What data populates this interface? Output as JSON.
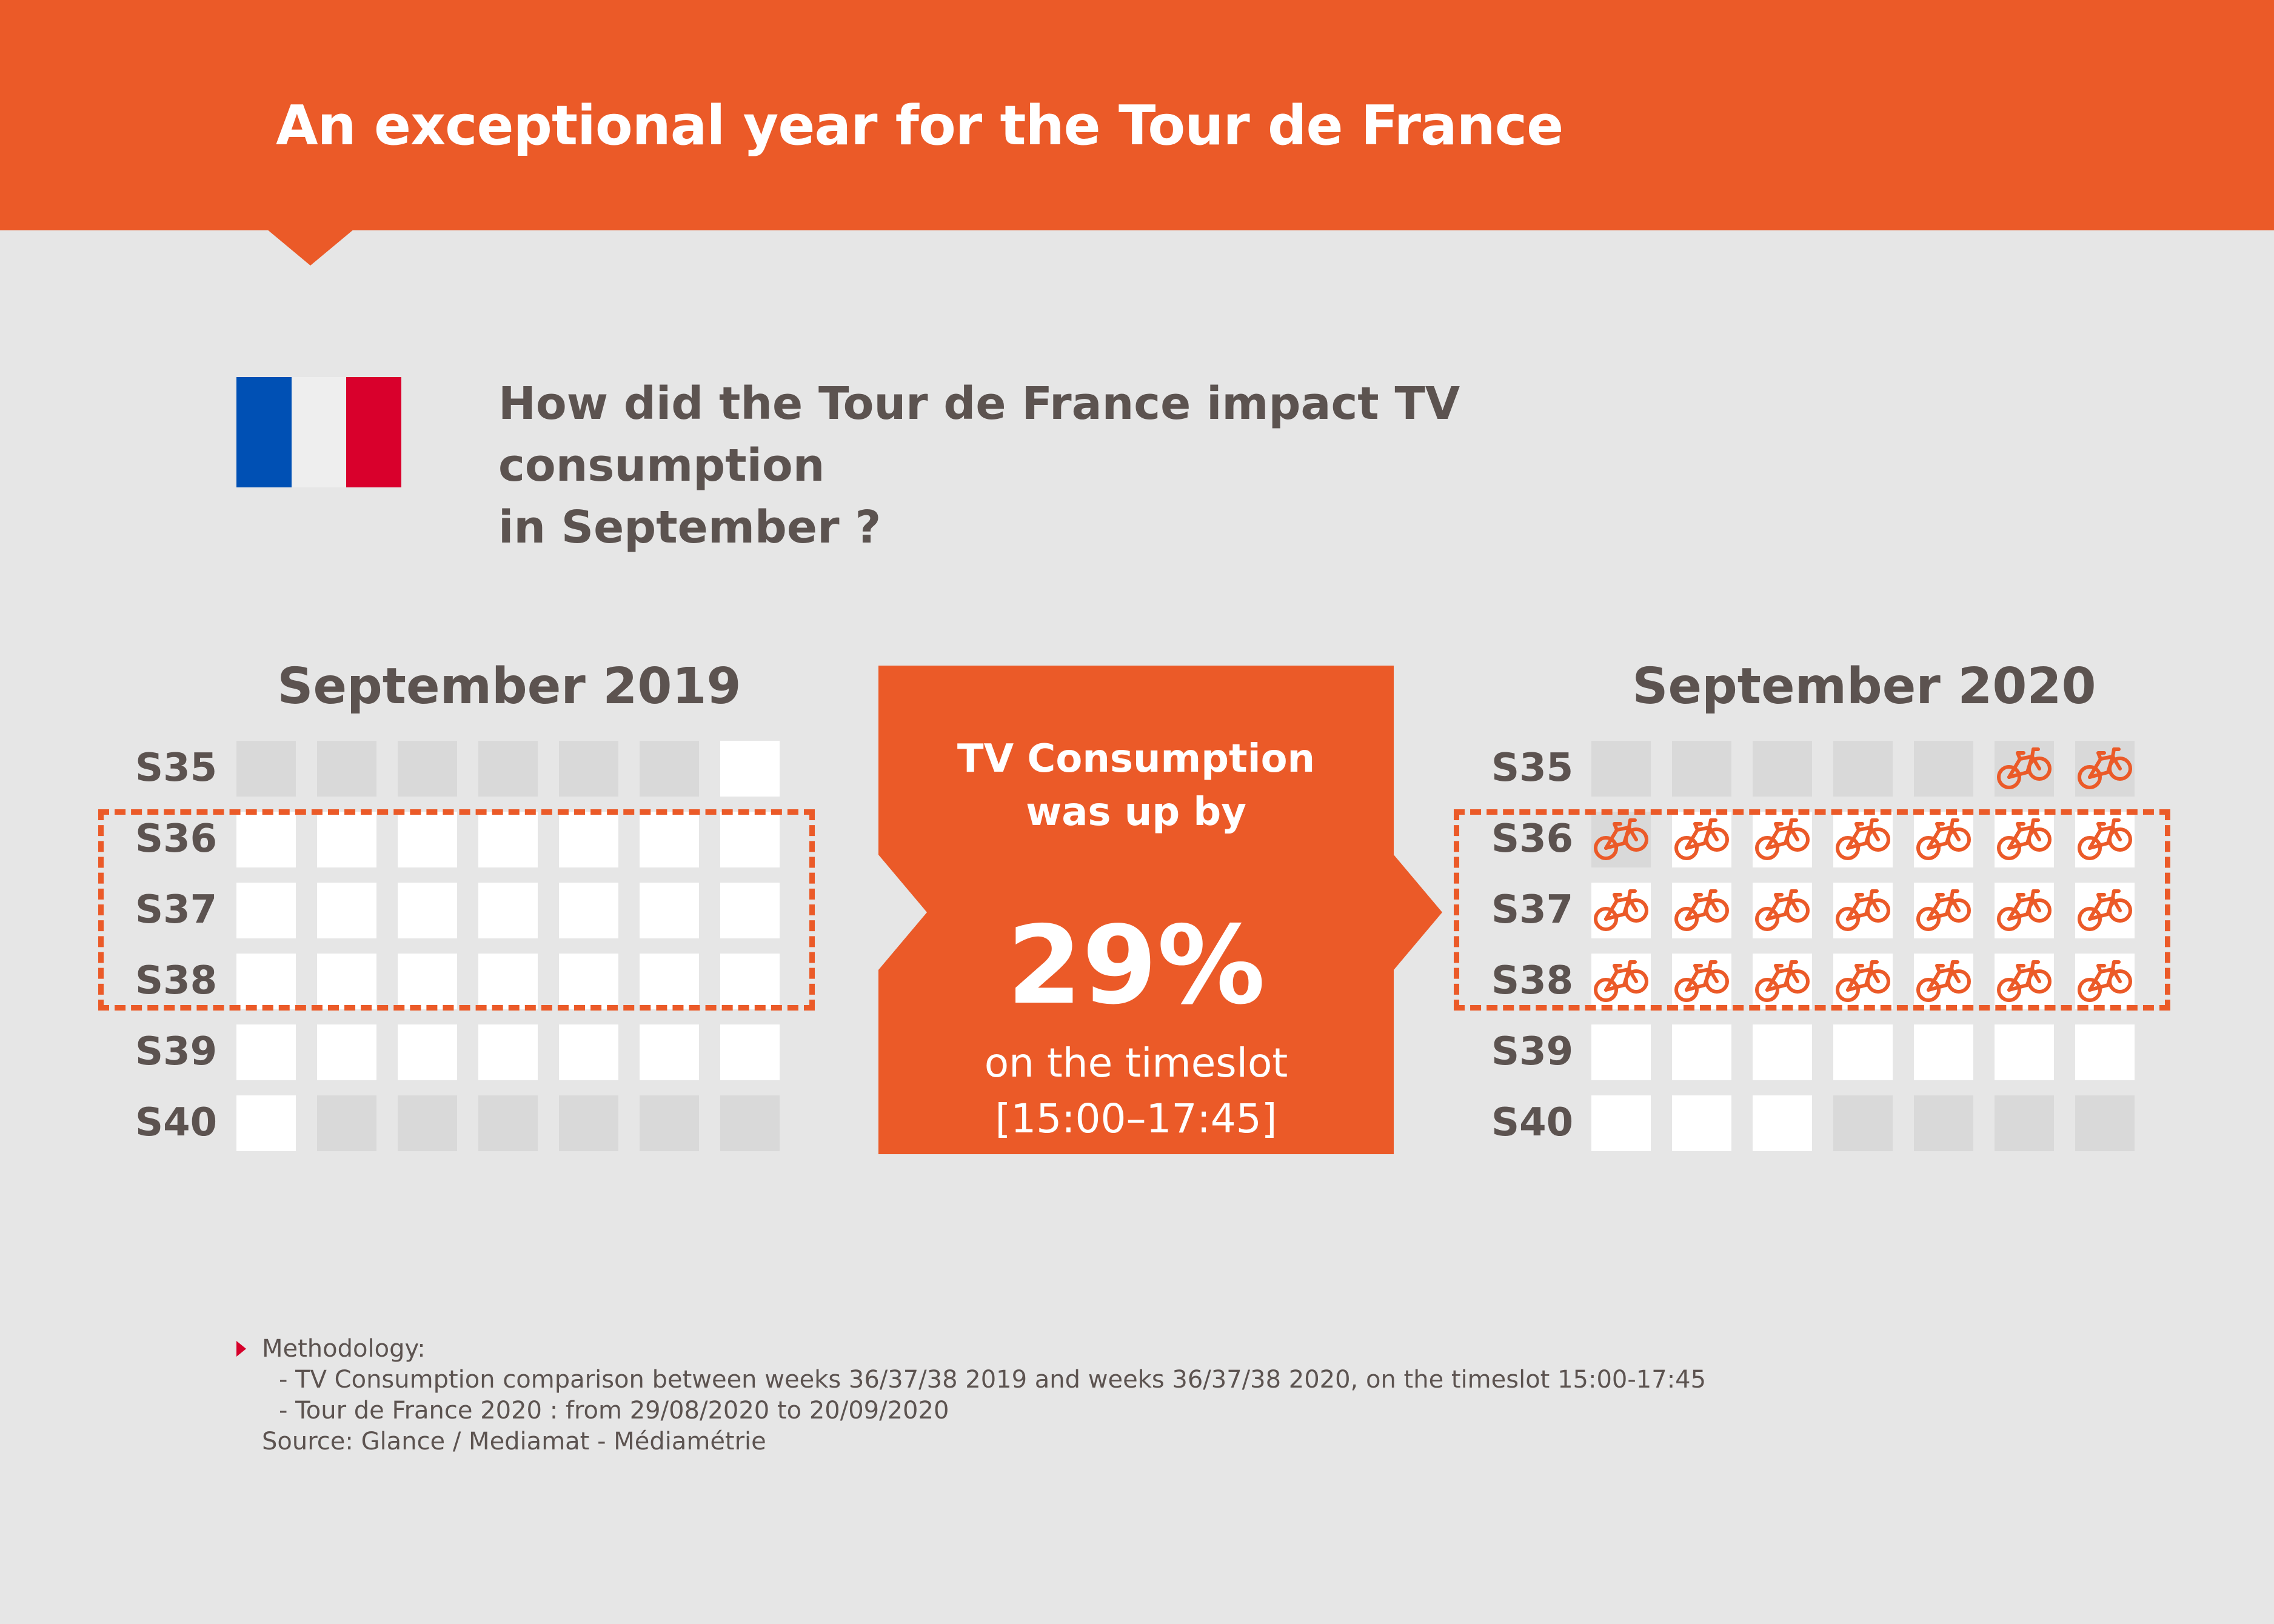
{
  "header": {
    "title": "An exceptional year for the Tour de France",
    "color": "#eb5a28"
  },
  "flag": {
    "colors": [
      "#0050b4",
      "#eeeeee",
      "#d9002c"
    ]
  },
  "question": {
    "line1": "How did the Tour de France impact TV consumption",
    "line2": "in September ?"
  },
  "calendar_2019": {
    "title": "September 2019",
    "highlighted_weeks": [
      "S36",
      "S37",
      "S38"
    ],
    "rows": [
      {
        "label": "S35",
        "cells": [
          "grey",
          "grey",
          "grey",
          "grey",
          "grey",
          "grey",
          "white"
        ]
      },
      {
        "label": "S36",
        "cells": [
          "white",
          "white",
          "white",
          "white",
          "white",
          "white",
          "white"
        ]
      },
      {
        "label": "S37",
        "cells": [
          "white",
          "white",
          "white",
          "white",
          "white",
          "white",
          "white"
        ]
      },
      {
        "label": "S38",
        "cells": [
          "white",
          "white",
          "white",
          "white",
          "white",
          "white",
          "white"
        ]
      },
      {
        "label": "S39",
        "cells": [
          "white",
          "white",
          "white",
          "white",
          "white",
          "white",
          "white"
        ]
      },
      {
        "label": "S40",
        "cells": [
          "white",
          "grey",
          "grey",
          "grey",
          "grey",
          "grey",
          "grey"
        ]
      }
    ]
  },
  "calendar_2020": {
    "title": "September 2020",
    "highlighted_weeks": [
      "S36",
      "S37",
      "S38"
    ],
    "rows": [
      {
        "label": "S35",
        "cells": [
          "grey",
          "grey",
          "grey",
          "grey",
          "grey",
          "bike-grey",
          "bike-grey"
        ]
      },
      {
        "label": "S36",
        "cells": [
          "bike-grey",
          "bike",
          "bike",
          "bike",
          "bike",
          "bike",
          "bike"
        ]
      },
      {
        "label": "S37",
        "cells": [
          "bike",
          "bike",
          "bike",
          "bike",
          "bike",
          "bike",
          "bike"
        ]
      },
      {
        "label": "S38",
        "cells": [
          "bike",
          "bike",
          "bike",
          "bike",
          "bike",
          "bike",
          "bike"
        ]
      },
      {
        "label": "S39",
        "cells": [
          "white",
          "white",
          "white",
          "white",
          "white",
          "white",
          "white"
        ]
      },
      {
        "label": "S40",
        "cells": [
          "white",
          "white",
          "white",
          "grey",
          "grey",
          "grey",
          "grey"
        ]
      }
    ]
  },
  "center": {
    "line1": "TV Consumption",
    "line2": "was up by",
    "value": "29%",
    "line3": "on the timeslot",
    "line4": "[15:00–17:45]"
  },
  "methodology": {
    "heading": "Methodology:",
    "line1": "- TV Consumption comparison between weeks 36/37/38 2019 and weeks 36/37/38 2020, on the timeslot 15:00-17:45",
    "line2": "- Tour de France 2020 : from 29/08/2020 to 20/09/2020",
    "source": "Source: Glance / Mediamat - Médiamétrie"
  },
  "icons": {
    "cell_icon": "bicycle-icon",
    "marker": "triangle-bullet-icon"
  }
}
